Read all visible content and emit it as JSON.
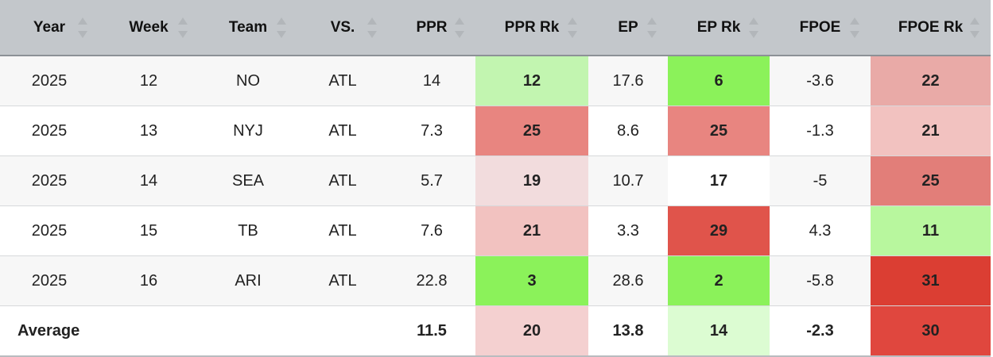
{
  "columns": [
    {
      "key": "year",
      "label": "Year"
    },
    {
      "key": "week",
      "label": "Week"
    },
    {
      "key": "team",
      "label": "Team"
    },
    {
      "key": "vs",
      "label": "VS."
    },
    {
      "key": "ppr",
      "label": "PPR"
    },
    {
      "key": "ppr_rk",
      "label": "PPR Rk"
    },
    {
      "key": "ep",
      "label": "EP"
    },
    {
      "key": "ep_rk",
      "label": "EP Rk"
    },
    {
      "key": "fpoe",
      "label": "FPOE"
    },
    {
      "key": "fpoe_rk",
      "label": "FPOE Rk"
    }
  ],
  "rows": [
    {
      "year": "2025",
      "week": "12",
      "team": "NO",
      "vs": "ATL",
      "ppr": "14",
      "ppr_rk": "12",
      "ep": "17.6",
      "ep_rk": "6",
      "fpoe": "-3.6",
      "fpoe_rk": "22"
    },
    {
      "year": "2025",
      "week": "13",
      "team": "NYJ",
      "vs": "ATL",
      "ppr": "7.3",
      "ppr_rk": "25",
      "ep": "8.6",
      "ep_rk": "25",
      "fpoe": "-1.3",
      "fpoe_rk": "21"
    },
    {
      "year": "2025",
      "week": "14",
      "team": "SEA",
      "vs": "ATL",
      "ppr": "5.7",
      "ppr_rk": "19",
      "ep": "10.7",
      "ep_rk": "17",
      "fpoe": "-5",
      "fpoe_rk": "25"
    },
    {
      "year": "2025",
      "week": "15",
      "team": "TB",
      "vs": "ATL",
      "ppr": "7.6",
      "ppr_rk": "21",
      "ep": "3.3",
      "ep_rk": "29",
      "fpoe": "4.3",
      "fpoe_rk": "11"
    },
    {
      "year": "2025",
      "week": "16",
      "team": "ARI",
      "vs": "ATL",
      "ppr": "22.8",
      "ppr_rk": "3",
      "ep": "28.6",
      "ep_rk": "2",
      "fpoe": "-5.8",
      "fpoe_rk": "31"
    }
  ],
  "average": {
    "label": "Average",
    "ppr": "11.5",
    "ppr_rk": "20",
    "ep": "13.8",
    "ep_rk": "14",
    "fpoe": "-2.3",
    "fpoe_rk": "30"
  },
  "rank_colors": {
    "rows": [
      {
        "ppr_rk": "#c2f5b0",
        "ep_rk": "#8bf25a",
        "fpoe_rk": "#e9aaa7"
      },
      {
        "ppr_rk": "#e88580",
        "ep_rk": "#e88580",
        "fpoe_rk": "#f2c2c0"
      },
      {
        "ppr_rk": "#f2dcdd",
        "ep_rk": "#ffffff",
        "fpoe_rk": "#e27e79"
      },
      {
        "ppr_rk": "#f2c2c0",
        "ep_rk": "#e0544b",
        "fpoe_rk": "#b8f79e"
      },
      {
        "ppr_rk": "#8bf25a",
        "ep_rk": "#8bf25a",
        "fpoe_rk": "#db3e33"
      }
    ],
    "average": {
      "ppr_rk": "#f4d0d0",
      "ep_rk": "#dcfcd2",
      "fpoe_rk": "#e0473e"
    }
  },
  "header_bg": "#c3c7cb",
  "sort_icon": "sort-arrows-icon"
}
